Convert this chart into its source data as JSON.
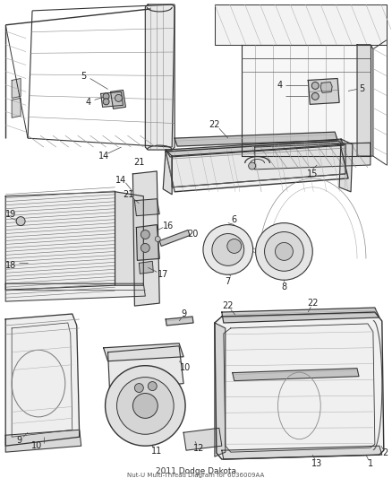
{
  "bg_color": "#ffffff",
  "fig_width": 4.38,
  "fig_height": 5.33,
  "dpi": 100,
  "title": "2011 Dodge Dakota",
  "subtitle": "Nut-U Multi-Thread Diagram for 6036009AA",
  "title_fontsize": 6.5,
  "label_fontsize": 7.0,
  "label_color": "#222222",
  "line_color": "#333333",
  "light_line": "#888888",
  "hatch_color": "#555555",
  "fill_light": "#f0f0f0",
  "fill_mid": "#d8d8d8",
  "fill_dark": "#b0b0b0"
}
